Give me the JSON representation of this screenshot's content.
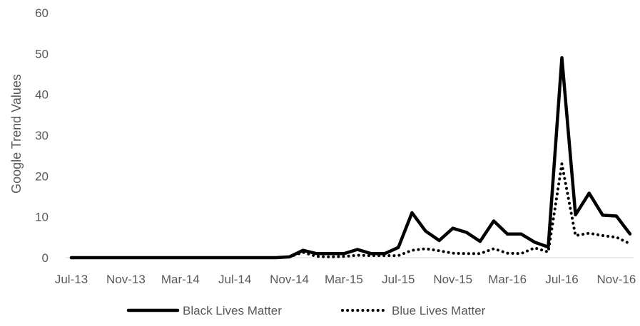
{
  "chart_data": {
    "type": "line",
    "ylabel": "Google Trend Values",
    "xlabel": "",
    "ylim": [
      0,
      60
    ],
    "yticks": [
      0,
      10,
      20,
      30,
      40,
      50,
      60
    ],
    "x_tick_labels": [
      "Jul-13",
      "Nov-13",
      "Mar-14",
      "Jul-14",
      "Nov-14",
      "Mar-15",
      "Jul-15",
      "Nov-15",
      "Mar-16",
      "Jul-16",
      "Nov-16"
    ],
    "x": [
      "Jul-13",
      "Aug-13",
      "Sep-13",
      "Oct-13",
      "Nov-13",
      "Dec-13",
      "Jan-14",
      "Feb-14",
      "Mar-14",
      "Apr-14",
      "May-14",
      "Jun-14",
      "Jul-14",
      "Aug-14",
      "Sep-14",
      "Oct-14",
      "Nov-14",
      "Dec-14",
      "Jan-15",
      "Feb-15",
      "Mar-15",
      "Apr-15",
      "May-15",
      "Jun-15",
      "Jul-15",
      "Aug-15",
      "Sep-15",
      "Oct-15",
      "Nov-15",
      "Dec-15",
      "Jan-16",
      "Feb-16",
      "Mar-16",
      "Apr-16",
      "May-16",
      "Jun-16",
      "Jul-16",
      "Aug-16",
      "Sep-16",
      "Oct-16",
      "Nov-16",
      "Dec-16"
    ],
    "series": [
      {
        "name": "Black Lives Matter",
        "style": "solid",
        "color": "#000000",
        "values": [
          0,
          0,
          0,
          0,
          0,
          0,
          0,
          0,
          0,
          0,
          0,
          0,
          0,
          0,
          0,
          0,
          0.2,
          1.8,
          1,
          1,
          1,
          2,
          1,
          1,
          2.5,
          11,
          6.5,
          4.2,
          7.2,
          6.2,
          4,
          9,
          5.8,
          5.8,
          3.8,
          2.6,
          49,
          10.5,
          15.8,
          10.4,
          10.2,
          5.8
        ]
      },
      {
        "name": "Blue Lives Matter",
        "style": "dotted",
        "color": "#000000",
        "values": [
          0,
          0,
          0,
          0,
          0,
          0,
          0,
          0,
          0,
          0,
          0,
          0,
          0,
          0,
          0,
          0,
          0.2,
          1.3,
          0.3,
          0.2,
          0.3,
          0.6,
          0.5,
          0.5,
          0.5,
          1.8,
          2.2,
          1.7,
          1.1,
          1,
          1,
          2.2,
          1.1,
          1,
          2.4,
          1.4,
          23,
          5.4,
          6,
          5.4,
          5,
          3.4
        ]
      }
    ],
    "legend_position": "bottom",
    "grid": false
  }
}
